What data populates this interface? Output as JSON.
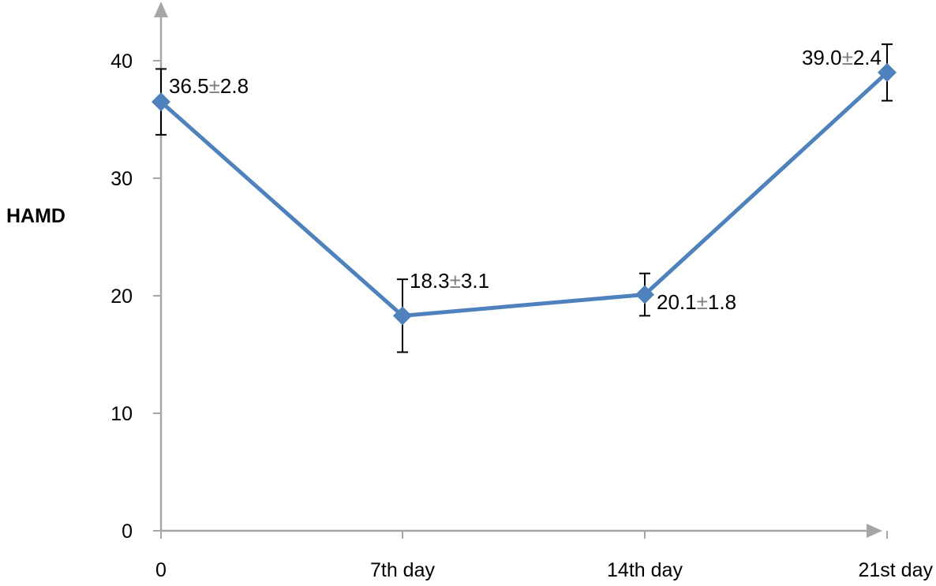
{
  "chart_data": {
    "type": "line",
    "title": "",
    "xlabel": "",
    "ylabel": "HAMD",
    "categories": [
      "0",
      "7th day",
      "14th day",
      "21st day"
    ],
    "ylim": [
      0,
      40
    ],
    "yticks": [
      0,
      10,
      20,
      30,
      40
    ],
    "grid": false,
    "legend": "none",
    "series": [
      {
        "values": [
          36.5,
          18.3,
          20.1,
          39.0
        ],
        "errors": [
          2.8,
          3.1,
          1.8,
          2.4
        ],
        "color": "#4F81BD",
        "marker": "diamond"
      }
    ],
    "data_labels": [
      {
        "mean": "36.5",
        "pm": "±",
        "sd": "2.8"
      },
      {
        "mean": "18.3",
        "pm": "±",
        "sd": "3.1"
      },
      {
        "mean": "20.1",
        "pm": "±",
        "sd": "1.8"
      },
      {
        "mean": "39.0",
        "pm": "±",
        "sd": "2.4"
      }
    ],
    "axis_color": "#A6A6A6",
    "error_bar_color": "#000000"
  }
}
